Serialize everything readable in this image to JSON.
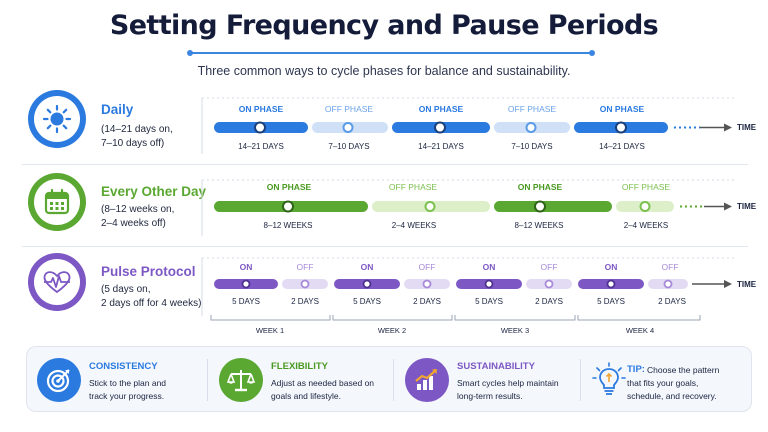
{
  "title": "Setting Frequency and Pause Periods",
  "subtitle": "Three common ways to cycle phases for balance and sustainability.",
  "colors": {
    "blue": "#2b7ae0",
    "green": "#5aa832",
    "purple": "#7d58c4",
    "orange": "#f0a432"
  },
  "time_label": "TIME",
  "rows": [
    {
      "title": "Daily",
      "description": "(14–21 days on,\n7–10 days off)",
      "icon": "sun-icon",
      "segments": [
        {
          "phase": "ON PHASE",
          "duration": "14–21 DAYS"
        },
        {
          "phase": "OFF PHASE",
          "duration": "7–10 DAYS"
        },
        {
          "phase": "ON PHASE",
          "duration": "14–21 DAYS"
        },
        {
          "phase": "OFF PHASE",
          "duration": "7–10 DAYS"
        },
        {
          "phase": "ON PHASE",
          "duration": "14–21 DAYS"
        }
      ]
    },
    {
      "title": "Every Other Day",
      "description": "(8–12 weeks on,\n2–4 weeks off)",
      "icon": "calendar-icon",
      "segments": [
        {
          "phase": "ON PHASE",
          "duration": "8–12 WEEKS"
        },
        {
          "phase": "OFF PHASE",
          "duration": "2–4 WEEKS"
        },
        {
          "phase": "ON PHASE",
          "duration": "8–12 WEEKS"
        },
        {
          "phase": "OFF PHASE",
          "duration": "2–4 WEEKS"
        }
      ]
    },
    {
      "title": "Pulse Protocol",
      "description": "(5 days on,\n2 days off for 4 weeks)",
      "icon": "pulse-icon",
      "segments": [
        {
          "phase": "ON",
          "duration": "5 DAYS"
        },
        {
          "phase": "OFF",
          "duration": "2 DAYS"
        },
        {
          "phase": "ON",
          "duration": "5 DAYS"
        },
        {
          "phase": "OFF",
          "duration": "2 DAYS"
        },
        {
          "phase": "ON",
          "duration": "5 DAYS"
        },
        {
          "phase": "OFF",
          "duration": "2 DAYS"
        },
        {
          "phase": "ON",
          "duration": "5 DAYS"
        },
        {
          "phase": "OFF",
          "duration": "2 DAYS"
        }
      ],
      "weeks": [
        "WEEK 1",
        "WEEK 2",
        "WEEK 3",
        "WEEK 4"
      ]
    }
  ],
  "cards": [
    {
      "title": "CONSISTENCY",
      "text": "Stick to the plan and\ntrack your progress.",
      "icon": "target-icon"
    },
    {
      "title": "FLEXIBILITY",
      "text": "Adjust as needed based on\ngoals and lifestyle.",
      "icon": "balance-scale-icon"
    },
    {
      "title": "SUSTAINABILITY",
      "text": "Smart cycles help maintain\nlong-term results.",
      "icon": "growth-chart-icon"
    },
    {
      "title": "TIP:",
      "text": "Choose the pattern\nthat fits your goals,\nschedule, and recovery.",
      "icon": "lightbulb-icon"
    }
  ]
}
